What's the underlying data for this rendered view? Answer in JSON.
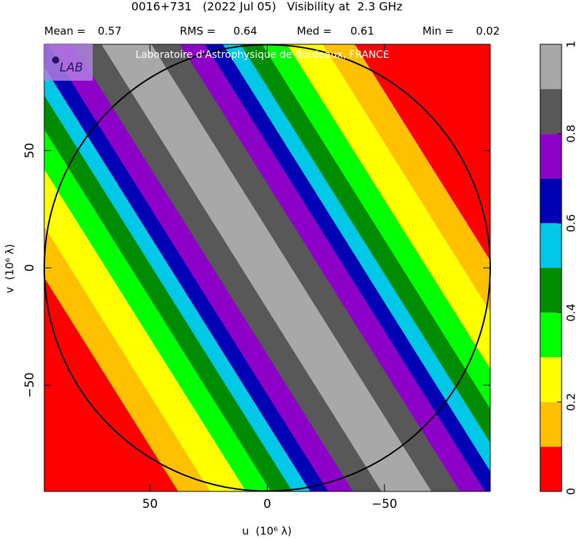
{
  "chart_data": {
    "type": "contour",
    "title": "0016+731   (2022 Jul 05)   Visibility at  2.3 GHz",
    "stats": [
      {
        "label": "Mean =",
        "value": 0.57
      },
      {
        "label": "RMS =",
        "value": 0.64
      },
      {
        "label": "Med =",
        "value": 0.61
      },
      {
        "label": "Min =",
        "value": 0.02
      }
    ],
    "annotation": "Laboratoire d'Astrophysique de Bordeaux, FRANCE",
    "logo": "LAB",
    "x_label": "u  (10⁶ λ)",
    "y_label": "v  (10⁶ λ)",
    "xlim": [
      95.1,
      -95.1
    ],
    "ylim": [
      -95.3,
      95.3
    ],
    "xticks": [
      50,
      0,
      {
        "value": -50,
        "label": "−50"
      }
    ],
    "yticks": [
      {
        "value": -50,
        "label": "−50"
      },
      0,
      50
    ],
    "colorbar": {
      "levels": [
        0,
        0.1,
        0.2,
        0.3,
        0.4,
        0.5,
        0.6,
        0.7,
        0.8,
        0.9,
        1
      ],
      "colors": [
        "#ff0000",
        "#ffc000",
        "#ffff00",
        "#00ff00",
        "#008c00",
        "#00c8e6",
        "#0000b4",
        "#8c00c8",
        "#585858",
        "#a8a8a8"
      ],
      "ticks": [
        0,
        0.2,
        0.4,
        0.6,
        0.8,
        1
      ]
    }
  }
}
